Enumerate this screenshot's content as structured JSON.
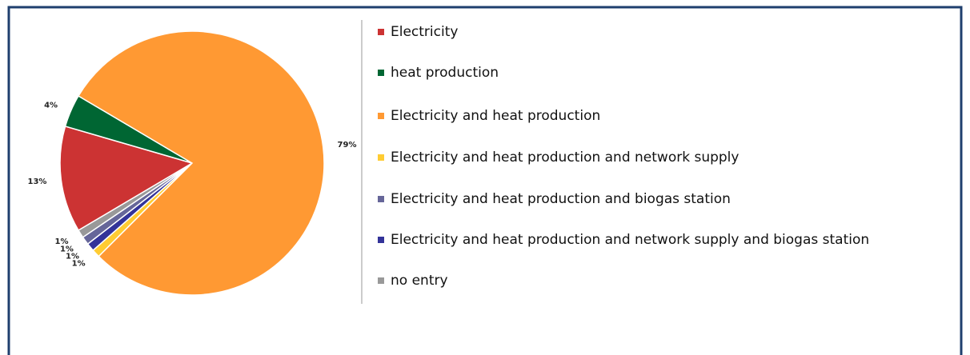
{
  "chart_data": {
    "type": "pie",
    "categories": [
      "Electricity",
      "heat production",
      "Electricity and heat production",
      "Electricity and heat production and network supply",
      "Electricity and heat production and biogas station",
      "Electricity and heat production and network supply and biogas station",
      "no entry"
    ],
    "values": [
      13,
      4,
      79,
      1,
      1,
      1,
      1
    ],
    "value_labels": [
      "13%",
      "4%",
      "79%",
      "1%",
      "1%",
      "1%",
      "1%"
    ],
    "colors": [
      "#cc3333",
      "#006633",
      "#ff9933",
      "#ffcc33",
      "#666699",
      "#333399",
      "#999999"
    ]
  }
}
